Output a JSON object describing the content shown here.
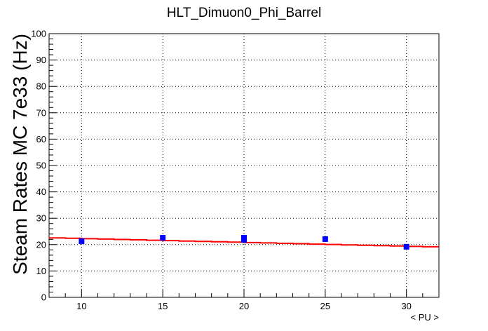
{
  "chart_data": {
    "type": "scatter",
    "title": "HLT_Dimuon0_Phi_Barrel",
    "xlabel": "< PU >",
    "ylabel": "Steam Rates MC 7e33 (Hz)",
    "xlim": [
      8,
      32
    ],
    "ylim": [
      0,
      100
    ],
    "xticks": [
      10,
      15,
      20,
      25,
      30
    ],
    "yticks": [
      0,
      10,
      20,
      30,
      40,
      50,
      60,
      70,
      80,
      90,
      100
    ],
    "grid": true,
    "series": [
      {
        "marker": "square",
        "color": "#0000ff",
        "x": [
          10,
          15,
          20,
          20,
          25,
          30
        ],
        "y": [
          21.3,
          22.6,
          22.6,
          21.8,
          22.1,
          19.2
        ]
      }
    ],
    "fit": {
      "type": "line",
      "color": "#ff0000",
      "x": [
        8,
        32
      ],
      "y": [
        22.6,
        19.1
      ]
    }
  }
}
